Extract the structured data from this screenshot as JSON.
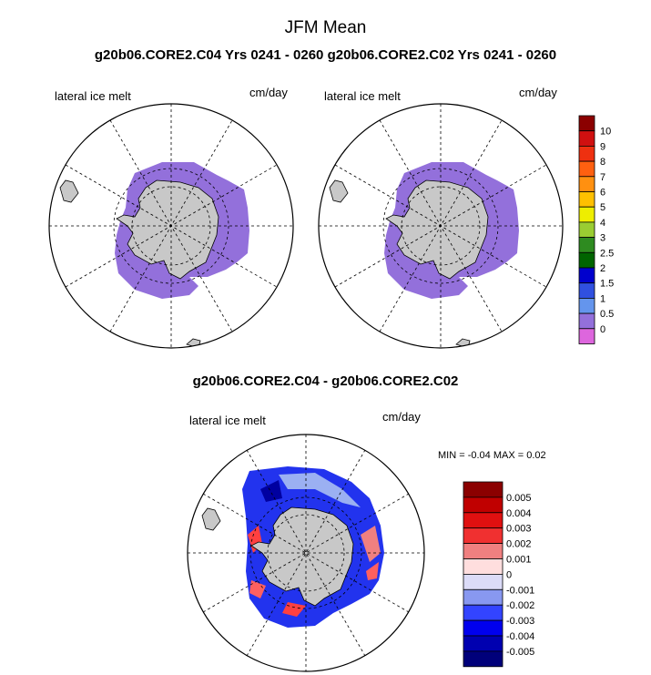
{
  "title": "JFM Mean",
  "subtitle": "g20b06.CORE2.C04  Yrs 0241 - 0260 g20b06.CORE2.C02  Yrs 0241 - 0260",
  "diff_title": "g20b06.CORE2.C04 - g20b06.CORE2.C02",
  "panels": [
    {
      "variable": "lateral ice melt",
      "units": "cm/day"
    },
    {
      "variable": "lateral ice melt",
      "units": "cm/day"
    },
    {
      "variable": "lateral ice melt",
      "units": "cm/day"
    }
  ],
  "stats": {
    "min_label": "MIN =",
    "min": "-0.04",
    "max_label": "MAX =",
    "max": "0.02"
  },
  "colorbar_abs": {
    "labels": [
      "10",
      "9",
      "8",
      "7",
      "6",
      "5",
      "4",
      "3",
      "2.5",
      "2",
      "1.5",
      "1",
      "0.5",
      "0"
    ],
    "colors": [
      "#8b0000",
      "#d01010",
      "#ee3010",
      "#ff6010",
      "#ff9010",
      "#ffc000",
      "#eeee00",
      "#9acd32",
      "#2e8b20",
      "#006400",
      "#0000cd",
      "#3050e0",
      "#6495ed",
      "#9370db",
      "#dd66dd"
    ]
  },
  "colorbar_diff": {
    "labels": [
      "0.005",
      "0.004",
      "0.003",
      "0.002",
      "0.001",
      "0",
      "-0.001",
      "-0.002",
      "-0.003",
      "-0.004",
      "-0.005"
    ],
    "colors": [
      "#8b0000",
      "#c00000",
      "#e01010",
      "#f03030",
      "#f08080",
      "#ffdede",
      "#dcdcf8",
      "#8898f0",
      "#3344ff",
      "#0000ee",
      "#0000b0",
      "#00007a"
    ]
  }
}
